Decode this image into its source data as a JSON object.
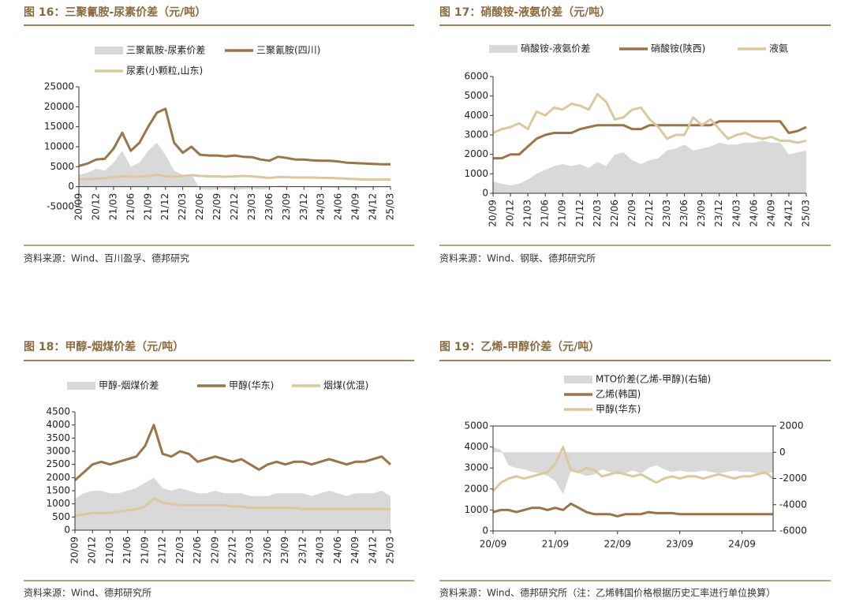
{
  "chart_data": [
    {
      "type": "line",
      "title": "图 16：三聚氰胺-尿素价差（元/吨）",
      "source": "资料来源：Wind、百川盈孚、德邦研究",
      "categories": [
        "20/09",
        null,
        "20/12",
        null,
        "21/03",
        null,
        "21/06",
        null,
        "21/09",
        null,
        "21/12",
        null,
        "22/03",
        null,
        "22/06",
        null,
        "22/09",
        null,
        "22/12",
        null,
        "23/03",
        null,
        "23/06",
        null,
        "23/09",
        null,
        "23/12",
        null,
        "24/03",
        null,
        "24/06",
        null,
        "24/09",
        null,
        "24/12",
        null,
        "25/03"
      ],
      "ylim": [
        -5000,
        25000
      ],
      "yticks": [
        -5000,
        0,
        5000,
        10000,
        15000,
        20000,
        25000
      ],
      "series": [
        {
          "name": "三聚氰胺-尿素价差",
          "type": "area",
          "color": "#d9d9d9",
          "values": [
            3000,
            3500,
            4500,
            4000,
            6000,
            9000,
            5000,
            6000,
            9000,
            11000,
            8000,
            4000,
            3000,
            3000,
            -500,
            -800,
            -600,
            -500,
            -800,
            -600,
            -500,
            -700,
            -400,
            300,
            200,
            100,
            100,
            0,
            -200,
            -200,
            -300,
            -300,
            -400,
            -300,
            -200,
            -100,
            -100
          ]
        },
        {
          "name": "三聚氰胺(四川)",
          "type": "line",
          "color": "#9b7448",
          "values": [
            5200,
            5800,
            6800,
            7000,
            9500,
            13500,
            9000,
            11000,
            15000,
            18500,
            19500,
            11000,
            8500,
            10000,
            8000,
            7800,
            7800,
            7600,
            7800,
            7500,
            7400,
            6800,
            6500,
            7500,
            7200,
            6800,
            6800,
            6600,
            6500,
            6500,
            6300,
            6000,
            5900,
            5800,
            5700,
            5600,
            5600
          ]
        },
        {
          "name": "尿素(小颗粒,山东)",
          "type": "line",
          "color": "#dcc89e",
          "values": [
            1800,
            1900,
            2000,
            2100,
            2400,
            2600,
            2500,
            2500,
            2700,
            3000,
            2600,
            2500,
            2700,
            2900,
            2700,
            2600,
            2600,
            2500,
            2600,
            2700,
            2600,
            2400,
            2200,
            2400,
            2400,
            2300,
            2300,
            2300,
            2200,
            2200,
            2100,
            2000,
            1900,
            1800,
            1800,
            1800,
            1800
          ]
        }
      ]
    },
    {
      "type": "line",
      "title": "图 17：硝酸铵-液氨价差（元/吨）",
      "source": "资料来源：Wind、钢联、德邦研究所",
      "categories": [
        "20/09",
        null,
        "20/12",
        null,
        "21/03",
        null,
        "21/06",
        null,
        "21/09",
        null,
        "21/12",
        null,
        "22/03",
        null,
        "22/06",
        null,
        "22/09",
        null,
        "22/12",
        null,
        "23/03",
        null,
        "23/06",
        null,
        "23/09",
        null,
        "23/12",
        null,
        "24/03",
        null,
        "24/06",
        null,
        "24/09",
        null,
        "24/12",
        null,
        "25/03"
      ],
      "ylim": [
        0,
        6000
      ],
      "yticks": [
        0,
        1000,
        2000,
        3000,
        4000,
        5000,
        6000
      ],
      "series": [
        {
          "name": "硝酸铵-液氨价差",
          "type": "area",
          "color": "#d9d9d9",
          "values": [
            600,
            500,
            400,
            500,
            700,
            1000,
            1200,
            1400,
            1500,
            1400,
            1500,
            1300,
            1600,
            1400,
            2000,
            2100,
            1700,
            1500,
            1700,
            1800,
            2200,
            2300,
            2500,
            2200,
            2300,
            2400,
            2600,
            2500,
            2500,
            2600,
            2600,
            2700,
            2600,
            2600,
            2000,
            2100,
            2200
          ]
        },
        {
          "name": "硝酸铵(陕西)",
          "type": "line",
          "color": "#9b7448",
          "values": [
            1800,
            1800,
            2000,
            2000,
            2400,
            2800,
            3000,
            3100,
            3100,
            3100,
            3300,
            3400,
            3500,
            3500,
            3500,
            3500,
            3300,
            3300,
            3500,
            3500,
            3500,
            3500,
            3500,
            3500,
            3500,
            3500,
            3700,
            3700,
            3700,
            3700,
            3700,
            3700,
            3700,
            3700,
            3100,
            3200,
            3400
          ]
        },
        {
          "name": "液氨",
          "type": "line",
          "color": "#dcc89e",
          "values": [
            3100,
            3300,
            3400,
            3600,
            3300,
            4200,
            4000,
            4400,
            4300,
            4600,
            4500,
            4300,
            5100,
            4700,
            3800,
            3900,
            4300,
            4400,
            3800,
            3400,
            2800,
            3000,
            3000,
            3900,
            3500,
            3800,
            3300,
            2800,
            3000,
            3100,
            2900,
            2800,
            2900,
            2700,
            2700,
            2600,
            2700
          ]
        }
      ]
    },
    {
      "type": "line",
      "title": "图 18：甲醇-烟煤价差（元/吨）",
      "source": "资料来源：Wind、德邦研究所",
      "categories": [
        "20/09",
        null,
        "20/12",
        null,
        "21/03",
        null,
        "21/06",
        null,
        "21/09",
        null,
        "21/12",
        null,
        "22/03",
        null,
        "22/06",
        null,
        "22/09",
        null,
        "22/12",
        null,
        "23/03",
        null,
        "23/06",
        null,
        "23/09",
        null,
        "23/12",
        null,
        "24/03",
        null,
        "24/06",
        null,
        "24/09",
        null,
        "24/12",
        null,
        "25/03"
      ],
      "ylim": [
        0,
        4500
      ],
      "yticks": [
        0,
        500,
        1000,
        1500,
        2000,
        2500,
        3000,
        3500,
        4000,
        4500
      ],
      "series": [
        {
          "name": "甲醇-烟煤价差",
          "type": "area",
          "color": "#d9d9d9",
          "values": [
            1200,
            1400,
            1500,
            1500,
            1400,
            1400,
            1500,
            1600,
            1800,
            2000,
            1600,
            1500,
            1600,
            1500,
            1400,
            1400,
            1500,
            1400,
            1400,
            1400,
            1300,
            1300,
            1300,
            1400,
            1400,
            1400,
            1400,
            1300,
            1400,
            1500,
            1400,
            1300,
            1400,
            1400,
            1400,
            1500,
            1300
          ]
        },
        {
          "name": "甲醇(华东)",
          "type": "line",
          "color": "#9b7448",
          "values": [
            1900,
            2200,
            2500,
            2600,
            2500,
            2600,
            2700,
            2800,
            3200,
            4000,
            2900,
            2800,
            3000,
            2900,
            2600,
            2700,
            2800,
            2700,
            2600,
            2700,
            2500,
            2300,
            2500,
            2600,
            2500,
            2600,
            2600,
            2500,
            2600,
            2700,
            2600,
            2500,
            2600,
            2600,
            2700,
            2800,
            2500
          ]
        },
        {
          "name": "烟煤(优混)",
          "type": "line",
          "color": "#dcc89e",
          "values": [
            550,
            600,
            650,
            650,
            650,
            700,
            750,
            800,
            900,
            1200,
            1050,
            1000,
            950,
            950,
            950,
            950,
            950,
            950,
            900,
            900,
            850,
            850,
            850,
            850,
            850,
            850,
            800,
            800,
            800,
            800,
            800,
            800,
            800,
            800,
            800,
            800,
            800
          ]
        }
      ]
    },
    {
      "type": "line",
      "title": "图 19：乙烯-甲醇价差（元/吨）",
      "source": "资料来源：Wind、德邦研究所（注：乙烯韩国价格根据历史汇率进行单位换算）",
      "categories": [
        "20/09",
        null,
        null,
        null,
        null,
        null,
        null,
        null,
        "21/09",
        null,
        null,
        null,
        null,
        null,
        null,
        null,
        "22/09",
        null,
        null,
        null,
        null,
        null,
        null,
        null,
        "23/09",
        null,
        null,
        null,
        null,
        null,
        null,
        null,
        "24/09",
        null,
        null,
        null,
        null
      ],
      "ylim": [
        0,
        5000
      ],
      "yticks": [
        0,
        1000,
        2000,
        3000,
        4000,
        5000
      ],
      "y2lim": [
        -6000,
        2000
      ],
      "y2ticks": [
        -6000,
        -4000,
        -2000,
        0,
        2000
      ],
      "series": [
        {
          "name": "MTO价差(乙烯-甲醇)(右轴)",
          "type": "area",
          "axis": "y2",
          "color": "#d9d9d9",
          "values": [
            400,
            200,
            -1000,
            -1200,
            -1300,
            -1500,
            -1600,
            -1800,
            -2200,
            -3200,
            -1400,
            -1600,
            -1800,
            -1700,
            -1300,
            -1500,
            -1700,
            -1600,
            -1400,
            -1600,
            -1200,
            -1000,
            -1300,
            -1500,
            -1400,
            -1500,
            -1500,
            -1400,
            -1500,
            -1600,
            -1500,
            -1400,
            -1500,
            -1500,
            -1600,
            -1700,
            -1500
          ]
        },
        {
          "name": "乙烯(韩国)",
          "type": "line",
          "color": "#9b7448",
          "values": [
            900,
            1000,
            1000,
            900,
            1000,
            1100,
            1100,
            1000,
            1100,
            1000,
            1300,
            1100,
            900,
            800,
            800,
            800,
            700,
            800,
            800,
            800,
            900,
            850,
            850,
            850,
            800,
            800,
            800,
            800,
            800,
            800,
            800,
            800,
            800,
            800,
            800,
            800,
            800
          ]
        },
        {
          "name": "甲醇(华东)",
          "type": "line",
          "color": "#dcc89e",
          "values": [
            1900,
            2300,
            2500,
            2600,
            2500,
            2600,
            2700,
            2800,
            3200,
            4000,
            2900,
            2800,
            3000,
            2900,
            2600,
            2700,
            2800,
            2700,
            2600,
            2700,
            2500,
            2300,
            2500,
            2600,
            2500,
            2600,
            2600,
            2500,
            2600,
            2700,
            2600,
            2500,
            2600,
            2600,
            2700,
            2800,
            2500
          ]
        }
      ]
    }
  ]
}
